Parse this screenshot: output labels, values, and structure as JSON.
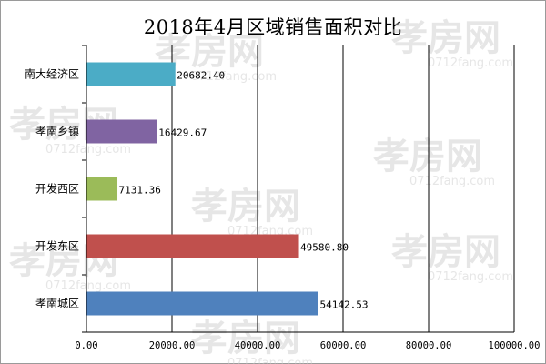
{
  "chart_data": {
    "type": "bar",
    "orientation": "horizontal",
    "title": "2018年4月区域销售面积对比",
    "categories": [
      "南大经济区",
      "孝南乡镇",
      "开发西区",
      "开发东区",
      "孝南城区"
    ],
    "values": [
      20682.4,
      16429.67,
      7131.36,
      49580.8,
      54142.53
    ],
    "value_labels": [
      "20682.40",
      "16429.67",
      "7131.36",
      "49580.80",
      "54142.53"
    ],
    "colors": [
      "#4bacc6",
      "#8064a2",
      "#9bbb59",
      "#c0504d",
      "#4f81bd"
    ],
    "xlim": [
      0,
      100000
    ],
    "xticks": [
      0,
      20000,
      40000,
      60000,
      80000,
      100000
    ],
    "xtick_labels": [
      "0.00",
      "20000.00",
      "40000.00",
      "60000.00",
      "80000.00",
      "100000.00"
    ],
    "xlabel": "",
    "ylabel": "",
    "grid": true,
    "legend": "none"
  },
  "watermark": {
    "brand": "孝房网",
    "domain": "0712fang.com"
  }
}
